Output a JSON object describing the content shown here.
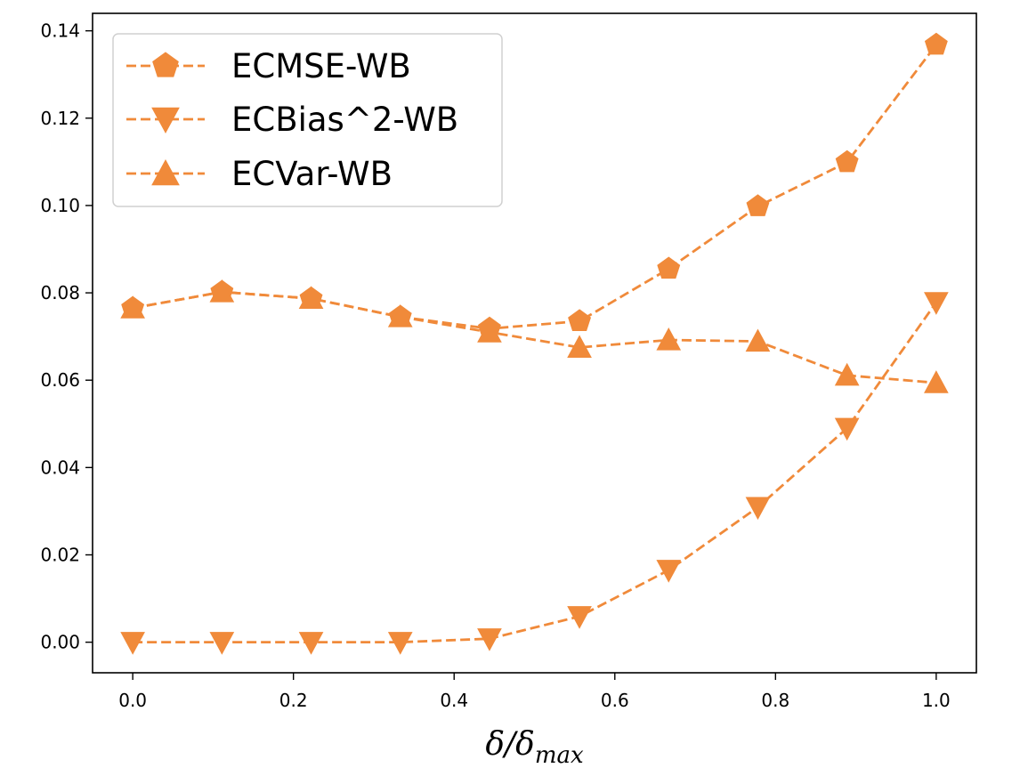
{
  "chart_data": {
    "type": "line",
    "title": "",
    "xlabel": "δ/δmax",
    "xlabel_parts": {
      "base": "δ/δ",
      "sub": "max"
    },
    "ylabel": "",
    "xlim": [
      -0.05,
      1.05
    ],
    "ylim": [
      -0.007,
      0.144
    ],
    "x_ticks": [
      0.0,
      0.2,
      0.4,
      0.6,
      0.8,
      1.0
    ],
    "x_tick_labels": [
      "0.0",
      "0.2",
      "0.4",
      "0.6",
      "0.8",
      "1.0"
    ],
    "y_ticks": [
      0.0,
      0.02,
      0.04,
      0.06,
      0.08,
      0.1,
      0.12,
      0.14
    ],
    "y_tick_labels": [
      "0.00",
      "0.02",
      "0.04",
      "0.06",
      "0.08",
      "0.10",
      "0.12",
      "0.14"
    ],
    "grid": false,
    "legend_position": "top-left",
    "color": "#f08a3a",
    "x": [
      0.0,
      0.111,
      0.222,
      0.333,
      0.444,
      0.556,
      0.667,
      0.778,
      0.889,
      1.0
    ],
    "series": [
      {
        "name": "ECMSE-WB",
        "marker": "pentagon",
        "values": [
          0.0765,
          0.0802,
          0.0787,
          0.0745,
          0.0718,
          0.0735,
          0.0855,
          0.0998,
          0.1099,
          0.1368
        ]
      },
      {
        "name": "ECBias^2-WB",
        "marker": "triangle-down",
        "values": [
          0.0,
          0.0,
          0.0,
          0.0,
          0.0008,
          0.0059,
          0.0165,
          0.0309,
          0.049,
          0.0778
        ]
      },
      {
        "name": "ECVar-WB",
        "marker": "triangle-up",
        "values": [
          0.0765,
          0.0802,
          0.0787,
          0.0745,
          0.071,
          0.0675,
          0.0692,
          0.0689,
          0.0611,
          0.0594
        ]
      }
    ]
  }
}
